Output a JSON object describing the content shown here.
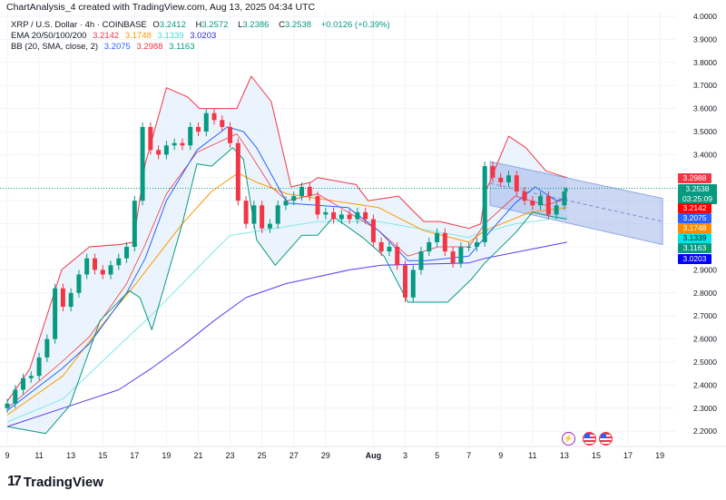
{
  "header": {
    "text": "ChartAnalysis_4 created with TradingView.com, Aug 13, 2025 04:34 UTC"
  },
  "legend": {
    "symbol": "XRP / U.S. Dollar · 4h · COINBASE",
    "o_label": "O",
    "o": "3.2412",
    "h_label": "H",
    "h": "3.2572",
    "l_label": "L",
    "l": "3.2386",
    "c_label": "C",
    "c": "3.2538",
    "change": "+0.0126 (+0.39%)",
    "ema_title": "EMA 20/50/100/200",
    "ema20": "3.2142",
    "ema50": "3.1748",
    "ema100": "3.1339",
    "ema200": "3.0203",
    "bb_title": "BB (20, SMA, close, 2)",
    "bb_basis": "3.2075",
    "bb_upper": "3.2988",
    "bb_lower": "3.1163"
  },
  "price_labels": [
    {
      "text": "3.2988",
      "color": "#f23645"
    },
    {
      "text": "3.2538",
      "sub": "03:25:09",
      "color": "#089981"
    },
    {
      "text": "3.2142",
      "color": "#ff0000"
    },
    {
      "text": "3.2075",
      "color": "#2962ff"
    },
    {
      "text": "3.1748",
      "color": "#ff8c00"
    },
    {
      "text": "3.1339",
      "color": "#00e5e5"
    },
    {
      "text": "3.1163",
      "color": "#089981"
    },
    {
      "text": "3.0203",
      "color": "#0000ff"
    }
  ],
  "colors": {
    "up": "#089981",
    "down": "#f23645",
    "ema20": "#f23645",
    "ema50": "#ff9800",
    "ema100": "#7fe8e8",
    "ema200": "#5b3cf5",
    "bb_basis": "#2962ff",
    "bb_upper": "#f23645",
    "bb_lower": "#089981",
    "bb_fill": "#e3f0fb",
    "channel": "#b4c3ee"
  },
  "footer": {
    "logo_text": "TradingView"
  },
  "events": [
    {
      "icon": "lightning-icon",
      "color": "#9c27b0"
    },
    {
      "icon": "us-flag-icon",
      "color": "#f23645"
    },
    {
      "icon": "us-flag-icon",
      "color": "#f23645"
    }
  ],
  "chart_data": {
    "type": "candlestick",
    "title": "",
    "ylim": [
      2.15,
      4.02
    ],
    "grid": true,
    "y_scale": "linear",
    "y_ticks": [
      "4.0000",
      "3.9000",
      "3.8000",
      "3.7000",
      "3.6000",
      "3.5000",
      "3.4000",
      "2.9000",
      "2.8000",
      "2.7000",
      "2.6000",
      "2.5000",
      "2.4000",
      "2.3000",
      "2.2000"
    ],
    "x_ticks": [
      {
        "t": "07-09 00",
        "label": "9"
      },
      {
        "t": "07-11 00",
        "label": "11"
      },
      {
        "t": "07-13 00",
        "label": "13"
      },
      {
        "t": "07-15 00",
        "label": "15"
      },
      {
        "t": "07-17 00",
        "label": "17"
      },
      {
        "t": "07-19 00",
        "label": "19"
      },
      {
        "t": "07-21 00",
        "label": "21"
      },
      {
        "t": "07-23 00",
        "label": "23"
      },
      {
        "t": "07-25 00",
        "label": "25"
      },
      {
        "t": "07-27 00",
        "label": "27"
      },
      {
        "t": "07-29 00",
        "label": "29"
      },
      {
        "t": "08-01 00",
        "label": "Aug"
      },
      {
        "t": "08-03 00",
        "label": "3"
      },
      {
        "t": "08-05 00",
        "label": "5"
      },
      {
        "t": "08-07 00",
        "label": "7"
      },
      {
        "t": "08-09 00",
        "label": "9"
      },
      {
        "t": "08-11 00",
        "label": "11"
      },
      {
        "t": "08-13 00",
        "label": "13"
      },
      {
        "t": "08-15 00",
        "label": "15"
      },
      {
        "t": "08-17 00",
        "label": "17"
      },
      {
        "t": "08-19 00",
        "label": "19"
      }
    ],
    "first_open": 2.3,
    "closes": [
      [
        "07-09 00",
        2.32
      ],
      [
        "07-09 12",
        2.38
      ],
      [
        "07-10 00",
        2.43
      ],
      [
        "07-10 12",
        2.44
      ],
      [
        "07-11 00",
        2.52
      ],
      [
        "07-11 12",
        2.6
      ],
      [
        "07-12 00",
        2.82
      ],
      [
        "07-12 12",
        2.74
      ],
      [
        "07-13 00",
        2.8
      ],
      [
        "07-13 12",
        2.88
      ],
      [
        "07-14 00",
        2.95
      ],
      [
        "07-14 12",
        2.9
      ],
      [
        "07-15 00",
        2.88
      ],
      [
        "07-15 12",
        2.92
      ],
      [
        "07-16 00",
        2.95
      ],
      [
        "07-16 12",
        3.0
      ],
      [
        "07-17 00",
        3.2
      ],
      [
        "07-17 12",
        3.52
      ],
      [
        "07-18 00",
        3.42
      ],
      [
        "07-18 12",
        3.4
      ],
      [
        "07-19 00",
        3.44
      ],
      [
        "07-19 12",
        3.45
      ],
      [
        "07-20 00",
        3.44
      ],
      [
        "07-20 12",
        3.52
      ],
      [
        "07-21 00",
        3.5
      ],
      [
        "07-21 12",
        3.58
      ],
      [
        "07-22 00",
        3.55
      ],
      [
        "07-22 12",
        3.52
      ],
      [
        "07-23 00",
        3.45
      ],
      [
        "07-23 12",
        3.2
      ],
      [
        "07-24 00",
        3.1
      ],
      [
        "07-24 12",
        3.18
      ],
      [
        "07-25 00",
        3.08
      ],
      [
        "07-25 12",
        3.1
      ],
      [
        "07-26 00",
        3.18
      ],
      [
        "07-26 12",
        3.2
      ],
      [
        "07-27 00",
        3.22
      ],
      [
        "07-27 12",
        3.26
      ],
      [
        "07-28 00",
        3.22
      ],
      [
        "07-28 12",
        3.14
      ],
      [
        "07-29 00",
        3.15
      ],
      [
        "07-29 12",
        3.12
      ],
      [
        "07-30 00",
        3.14
      ],
      [
        "07-30 12",
        3.12
      ],
      [
        "07-31 00",
        3.15
      ],
      [
        "07-31 12",
        3.12
      ],
      [
        "08-01 00",
        3.02
      ],
      [
        "08-01 12",
        2.98
      ],
      [
        "08-02 00",
        3.0
      ],
      [
        "08-02 12",
        2.92
      ],
      [
        "08-03 00",
        2.78
      ],
      [
        "08-03 12",
        2.9
      ],
      [
        "08-04 00",
        2.98
      ],
      [
        "08-04 12",
        3.02
      ],
      [
        "08-05 00",
        3.06
      ],
      [
        "08-05 12",
        2.98
      ],
      [
        "08-06 00",
        2.93
      ],
      [
        "08-06 12",
        3.0
      ],
      [
        "08-07 00",
        3.0
      ],
      [
        "08-07 12",
        3.02
      ],
      [
        "08-08 00",
        3.35
      ],
      [
        "08-08 12",
        3.3
      ],
      [
        "08-09 00",
        3.28
      ],
      [
        "08-09 12",
        3.31
      ],
      [
        "08-10 00",
        3.24
      ],
      [
        "08-10 12",
        3.2
      ],
      [
        "08-11 00",
        3.18
      ],
      [
        "08-11 12",
        3.22
      ],
      [
        "08-12 00",
        3.14
      ],
      [
        "08-12 12",
        3.18
      ],
      [
        "08-13 00",
        3.24
      ],
      [
        "08-13 04",
        3.2538
      ]
    ],
    "series": [
      {
        "key": "ema200",
        "points": [
          [
            "07-09 00",
            2.22
          ],
          [
            "07-12 12",
            2.3
          ],
          [
            "07-16 00",
            2.38
          ],
          [
            "07-18 00",
            2.47
          ],
          [
            "07-20 00",
            2.57
          ],
          [
            "07-22 00",
            2.68
          ],
          [
            "07-24 00",
            2.78
          ],
          [
            "07-26 12",
            2.84
          ],
          [
            "07-30 12",
            2.9
          ],
          [
            "08-01 12",
            2.92
          ],
          [
            "08-07 00",
            2.93
          ],
          [
            "08-08 00",
            2.95
          ],
          [
            "08-13 04",
            3.02
          ]
        ]
      },
      {
        "key": "ema100",
        "points": [
          [
            "07-09 00",
            2.24
          ],
          [
            "07-12 12",
            2.34
          ],
          [
            "07-16 00",
            2.57
          ],
          [
            "07-18 00",
            2.7
          ],
          [
            "07-20 00",
            2.84
          ],
          [
            "07-21 20",
            2.97
          ],
          [
            "07-23 00",
            3.05
          ],
          [
            "07-24 00",
            3.06
          ],
          [
            "07-28 12",
            3.11
          ],
          [
            "08-01 08",
            3.11
          ],
          [
            "08-07 00",
            3.04
          ],
          [
            "08-07 06",
            3.05
          ],
          [
            "08-09 22",
            3.1
          ],
          [
            "08-13 04",
            3.13
          ]
        ]
      },
      {
        "key": "ema50",
        "points": [
          [
            "07-09 00",
            2.27
          ],
          [
            "07-12 12",
            2.44
          ],
          [
            "07-15 04",
            2.68
          ],
          [
            "07-17 02",
            2.84
          ],
          [
            "07-20 00",
            3.1
          ],
          [
            "07-21 20",
            3.24
          ],
          [
            "07-23 12",
            3.32
          ],
          [
            "07-24 16",
            3.28
          ],
          [
            "07-26 14",
            3.23
          ],
          [
            "07-30 10",
            3.19
          ],
          [
            "08-01 08",
            3.17
          ],
          [
            "08-04 04",
            3.07
          ],
          [
            "08-07 00",
            3.02
          ],
          [
            "08-08 00",
            3.07
          ],
          [
            "08-10 20",
            3.15
          ],
          [
            "08-13 04",
            3.17
          ]
        ]
      },
      {
        "key": "ema20",
        "points": [
          [
            "07-09 00",
            2.3
          ],
          [
            "07-12 10",
            2.5
          ],
          [
            "07-14 04",
            2.61
          ],
          [
            "07-16 12",
            2.84
          ],
          [
            "07-17 16",
            3.01
          ],
          [
            "07-19 00",
            3.23
          ],
          [
            "07-20 22",
            3.41
          ],
          [
            "07-23 10",
            3.49
          ],
          [
            "07-23 20",
            3.45
          ],
          [
            "07-25 14",
            3.26
          ],
          [
            "07-26 14",
            3.2
          ],
          [
            "07-28 12",
            3.23
          ],
          [
            "07-30 10",
            3.15
          ],
          [
            "08-01 08",
            3.07
          ],
          [
            "08-03 04",
            2.96
          ],
          [
            "08-05 02",
            3.0
          ],
          [
            "08-07 00",
            3.0
          ],
          [
            "08-08 00",
            3.1
          ],
          [
            "08-09 22",
            3.22
          ],
          [
            "08-11 20",
            3.18
          ],
          [
            "08-13 04",
            3.21
          ]
        ]
      },
      {
        "key": "bb_basis",
        "points": [
          [
            "07-09 00",
            2.29
          ],
          [
            "07-12 10",
            2.47
          ],
          [
            "07-14 04",
            2.58
          ],
          [
            "07-16 12",
            2.8
          ],
          [
            "07-17 16",
            2.95
          ],
          [
            "07-19 00",
            3.2
          ],
          [
            "07-20 22",
            3.42
          ],
          [
            "07-22 20",
            3.52
          ],
          [
            "07-23 20",
            3.5
          ],
          [
            "07-24 16",
            3.43
          ],
          [
            "07-26 14",
            3.19
          ],
          [
            "07-28 12",
            3.18
          ],
          [
            "07-30 10",
            3.17
          ],
          [
            "08-01 08",
            3.07
          ],
          [
            "08-03 04",
            2.94
          ],
          [
            "08-04 08",
            2.94
          ],
          [
            "08-07 00",
            2.96
          ],
          [
            "08-08 00",
            3.04
          ],
          [
            "08-09 22",
            3.19
          ],
          [
            "08-11 04",
            3.26
          ],
          [
            "08-12 12",
            3.2
          ],
          [
            "08-13 04",
            3.21
          ]
        ]
      },
      {
        "key": "bb_upper",
        "points": [
          [
            "07-09 00",
            2.33
          ],
          [
            "07-10 10",
            2.47
          ],
          [
            "07-12 10",
            2.9
          ],
          [
            "07-14 04",
            3.0
          ],
          [
            "07-16 02",
            3.01
          ],
          [
            "07-16 22",
            3.02
          ],
          [
            "07-17 16",
            3.36
          ],
          [
            "07-19 00",
            3.69
          ],
          [
            "07-20 08",
            3.65
          ],
          [
            "07-21 02",
            3.6
          ],
          [
            "07-23 10",
            3.6
          ],
          [
            "07-24 08",
            3.74
          ],
          [
            "07-25 14",
            3.63
          ],
          [
            "07-26 20",
            3.26
          ],
          [
            "07-28 02",
            3.28
          ],
          [
            "07-28 12",
            3.3
          ],
          [
            "07-30 22",
            3.27
          ],
          [
            "07-31 16",
            3.2
          ],
          [
            "08-02 14",
            3.22
          ],
          [
            "08-03 14",
            3.15
          ],
          [
            "08-04 04",
            3.11
          ],
          [
            "08-05 04",
            3.11
          ],
          [
            "08-07 00",
            3.08
          ],
          [
            "08-07 18",
            3.1
          ],
          [
            "08-08 00",
            3.23
          ],
          [
            "08-09 12",
            3.48
          ],
          [
            "08-10 14",
            3.43
          ],
          [
            "08-11 20",
            3.33
          ],
          [
            "08-13 04",
            3.3
          ]
        ]
      },
      {
        "key": "bb_lower",
        "points": [
          [
            "07-09 00",
            2.22
          ],
          [
            "07-11 10",
            2.19
          ],
          [
            "07-12 22",
            2.31
          ],
          [
            "07-14 20",
            2.68
          ],
          [
            "07-16 16",
            2.81
          ],
          [
            "07-17 08",
            2.78
          ],
          [
            "07-18 02",
            2.64
          ],
          [
            "07-20 00",
            3.1
          ],
          [
            "07-20 22",
            3.36
          ],
          [
            "07-21 20",
            3.35
          ],
          [
            "07-23 04",
            3.43
          ],
          [
            "07-23 20",
            3.38
          ],
          [
            "07-24 16",
            3.03
          ],
          [
            "07-25 20",
            2.92
          ],
          [
            "07-27 12",
            3.05
          ],
          [
            "07-28 12",
            3.05
          ],
          [
            "07-29 12",
            3.13
          ],
          [
            "07-31 08",
            3.04
          ],
          [
            "08-01 16",
            2.96
          ],
          [
            "08-03 04",
            2.76
          ],
          [
            "08-05 16",
            2.76
          ],
          [
            "08-07 04",
            2.86
          ],
          [
            "08-08 00",
            2.93
          ],
          [
            "08-09 22",
            3.06
          ],
          [
            "08-11 00",
            3.15
          ],
          [
            "08-12 08",
            3.13
          ],
          [
            "08-13 04",
            3.12
          ]
        ]
      }
    ],
    "channel": {
      "top": [
        [
          "08-08 08",
          3.37
        ],
        [
          "08-19 04",
          3.21
        ]
      ],
      "bottom": [
        [
          "08-08 08",
          3.18
        ],
        [
          "08-19 04",
          3.01
        ]
      ]
    },
    "last_price": 3.2538
  }
}
